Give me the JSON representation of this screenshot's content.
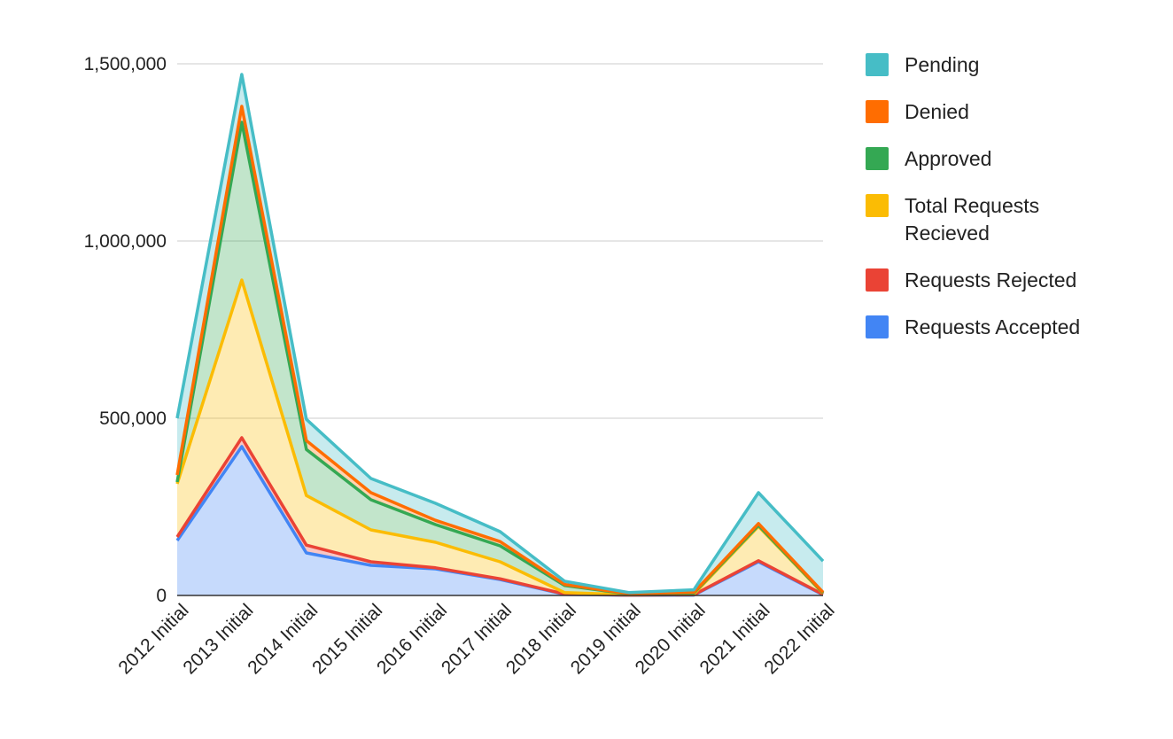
{
  "chart_data": {
    "type": "area",
    "stacked": true,
    "categories": [
      "2012 Initial",
      "2013 Initial",
      "2014 Initial",
      "2015 Initial",
      "2016 Initial",
      "2017 Initial",
      "2018 Initial",
      "2019 Initial",
      "2020 Initial",
      "2021 Initial",
      "2022 Initial"
    ],
    "series": [
      {
        "name": "Requests Accepted",
        "color": "#4285f4",
        "values": [
          155000,
          420000,
          120000,
          85000,
          75000,
          45000,
          3000,
          500,
          1000,
          95000,
          2000
        ]
      },
      {
        "name": "Requests Rejected",
        "color": "#ea4335",
        "values": [
          10000,
          25000,
          22000,
          10000,
          3000,
          2000,
          1000,
          500,
          1000,
          3000,
          1000
        ]
      },
      {
        "name": "Total Requests\nRecieved",
        "color": "#fbbc04",
        "values": [
          150000,
          445000,
          140000,
          90000,
          72000,
          48000,
          4000,
          1000,
          2000,
          97000,
          3000
        ]
      },
      {
        "name": "Approved",
        "color": "#34a853",
        "values": [
          5000,
          445000,
          130000,
          85000,
          50000,
          45000,
          20000,
          2000,
          3000,
          3000,
          1000
        ]
      },
      {
        "name": "Denied",
        "color": "#ff6d01",
        "values": [
          20000,
          45000,
          25000,
          20000,
          12000,
          12000,
          3000,
          1000,
          2000,
          5000,
          2000
        ]
      },
      {
        "name": "Pending",
        "color": "#46bdc6",
        "values": [
          160000,
          90000,
          60000,
          40000,
          48000,
          28000,
          9000,
          3000,
          7000,
          87000,
          88000
        ]
      }
    ],
    "legend_order": [
      "Pending",
      "Denied",
      "Approved",
      "Total Requests\nRecieved",
      "Requests Rejected",
      "Requests Accepted"
    ],
    "y_ticks": [
      "0",
      "500,000",
      "1,000,000",
      "1,500,000"
    ],
    "y_tick_values": [
      0,
      500000,
      1000000,
      1500000
    ],
    "ylim": [
      0,
      1500000
    ],
    "title": "",
    "xlabel": "",
    "ylabel": "",
    "grid": true,
    "legend_position": "right"
  }
}
